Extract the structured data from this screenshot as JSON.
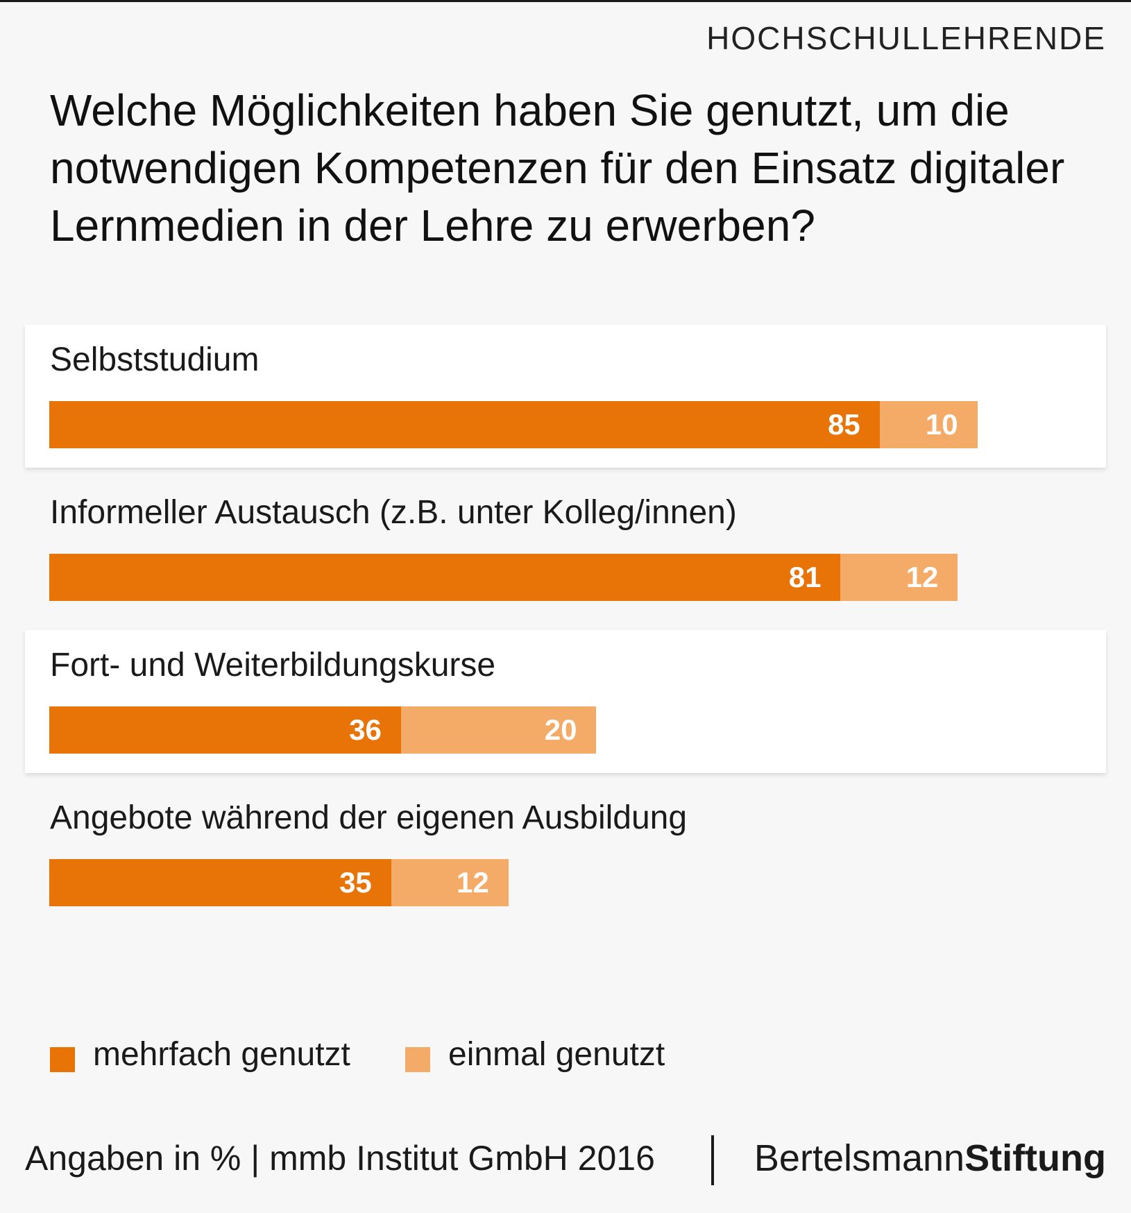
{
  "header": {
    "category": "HOCHSCHULLEHRENDE",
    "title": "Welche Möglichkeiten haben Sie genutzt, um die notwendigen Kompetenzen für den Einsatz digitaler Lernmedien in der Lehre zu erwerben?"
  },
  "colors": {
    "multiple": "#e87408",
    "once": "#f4ab67",
    "background": "#f7f7f7",
    "panel": "#ffffff"
  },
  "chart_data": {
    "type": "bar",
    "orientation": "horizontal",
    "stacked": true,
    "title": "Welche Möglichkeiten haben Sie genutzt, um die notwendigen Kompetenzen für den Einsatz digitaler Lernmedien in der Lehre zu erwerben?",
    "categories": [
      "Selbststudium",
      "Informeller Austausch (z.B. unter Kolleg/innen)",
      "Fort- und Weiterbildungskurse",
      "Angebote während der eigenen Ausbildung"
    ],
    "series": [
      {
        "name": "mehrfach genutzt",
        "values": [
          85,
          81,
          36,
          35
        ]
      },
      {
        "name": "einmal genutzt",
        "values": [
          10,
          12,
          20,
          12
        ]
      }
    ],
    "xlim": [
      0,
      100
    ],
    "unit": "%",
    "grid": false,
    "legend_position": "bottom-left"
  },
  "legend": {
    "multiple": "mehrfach genutzt",
    "once": "einmal genutzt"
  },
  "footer": {
    "note": "Angaben in % | mmb Institut GmbH 2016",
    "brand_regular": "Bertelsmann",
    "brand_bold": "Stiftung"
  }
}
